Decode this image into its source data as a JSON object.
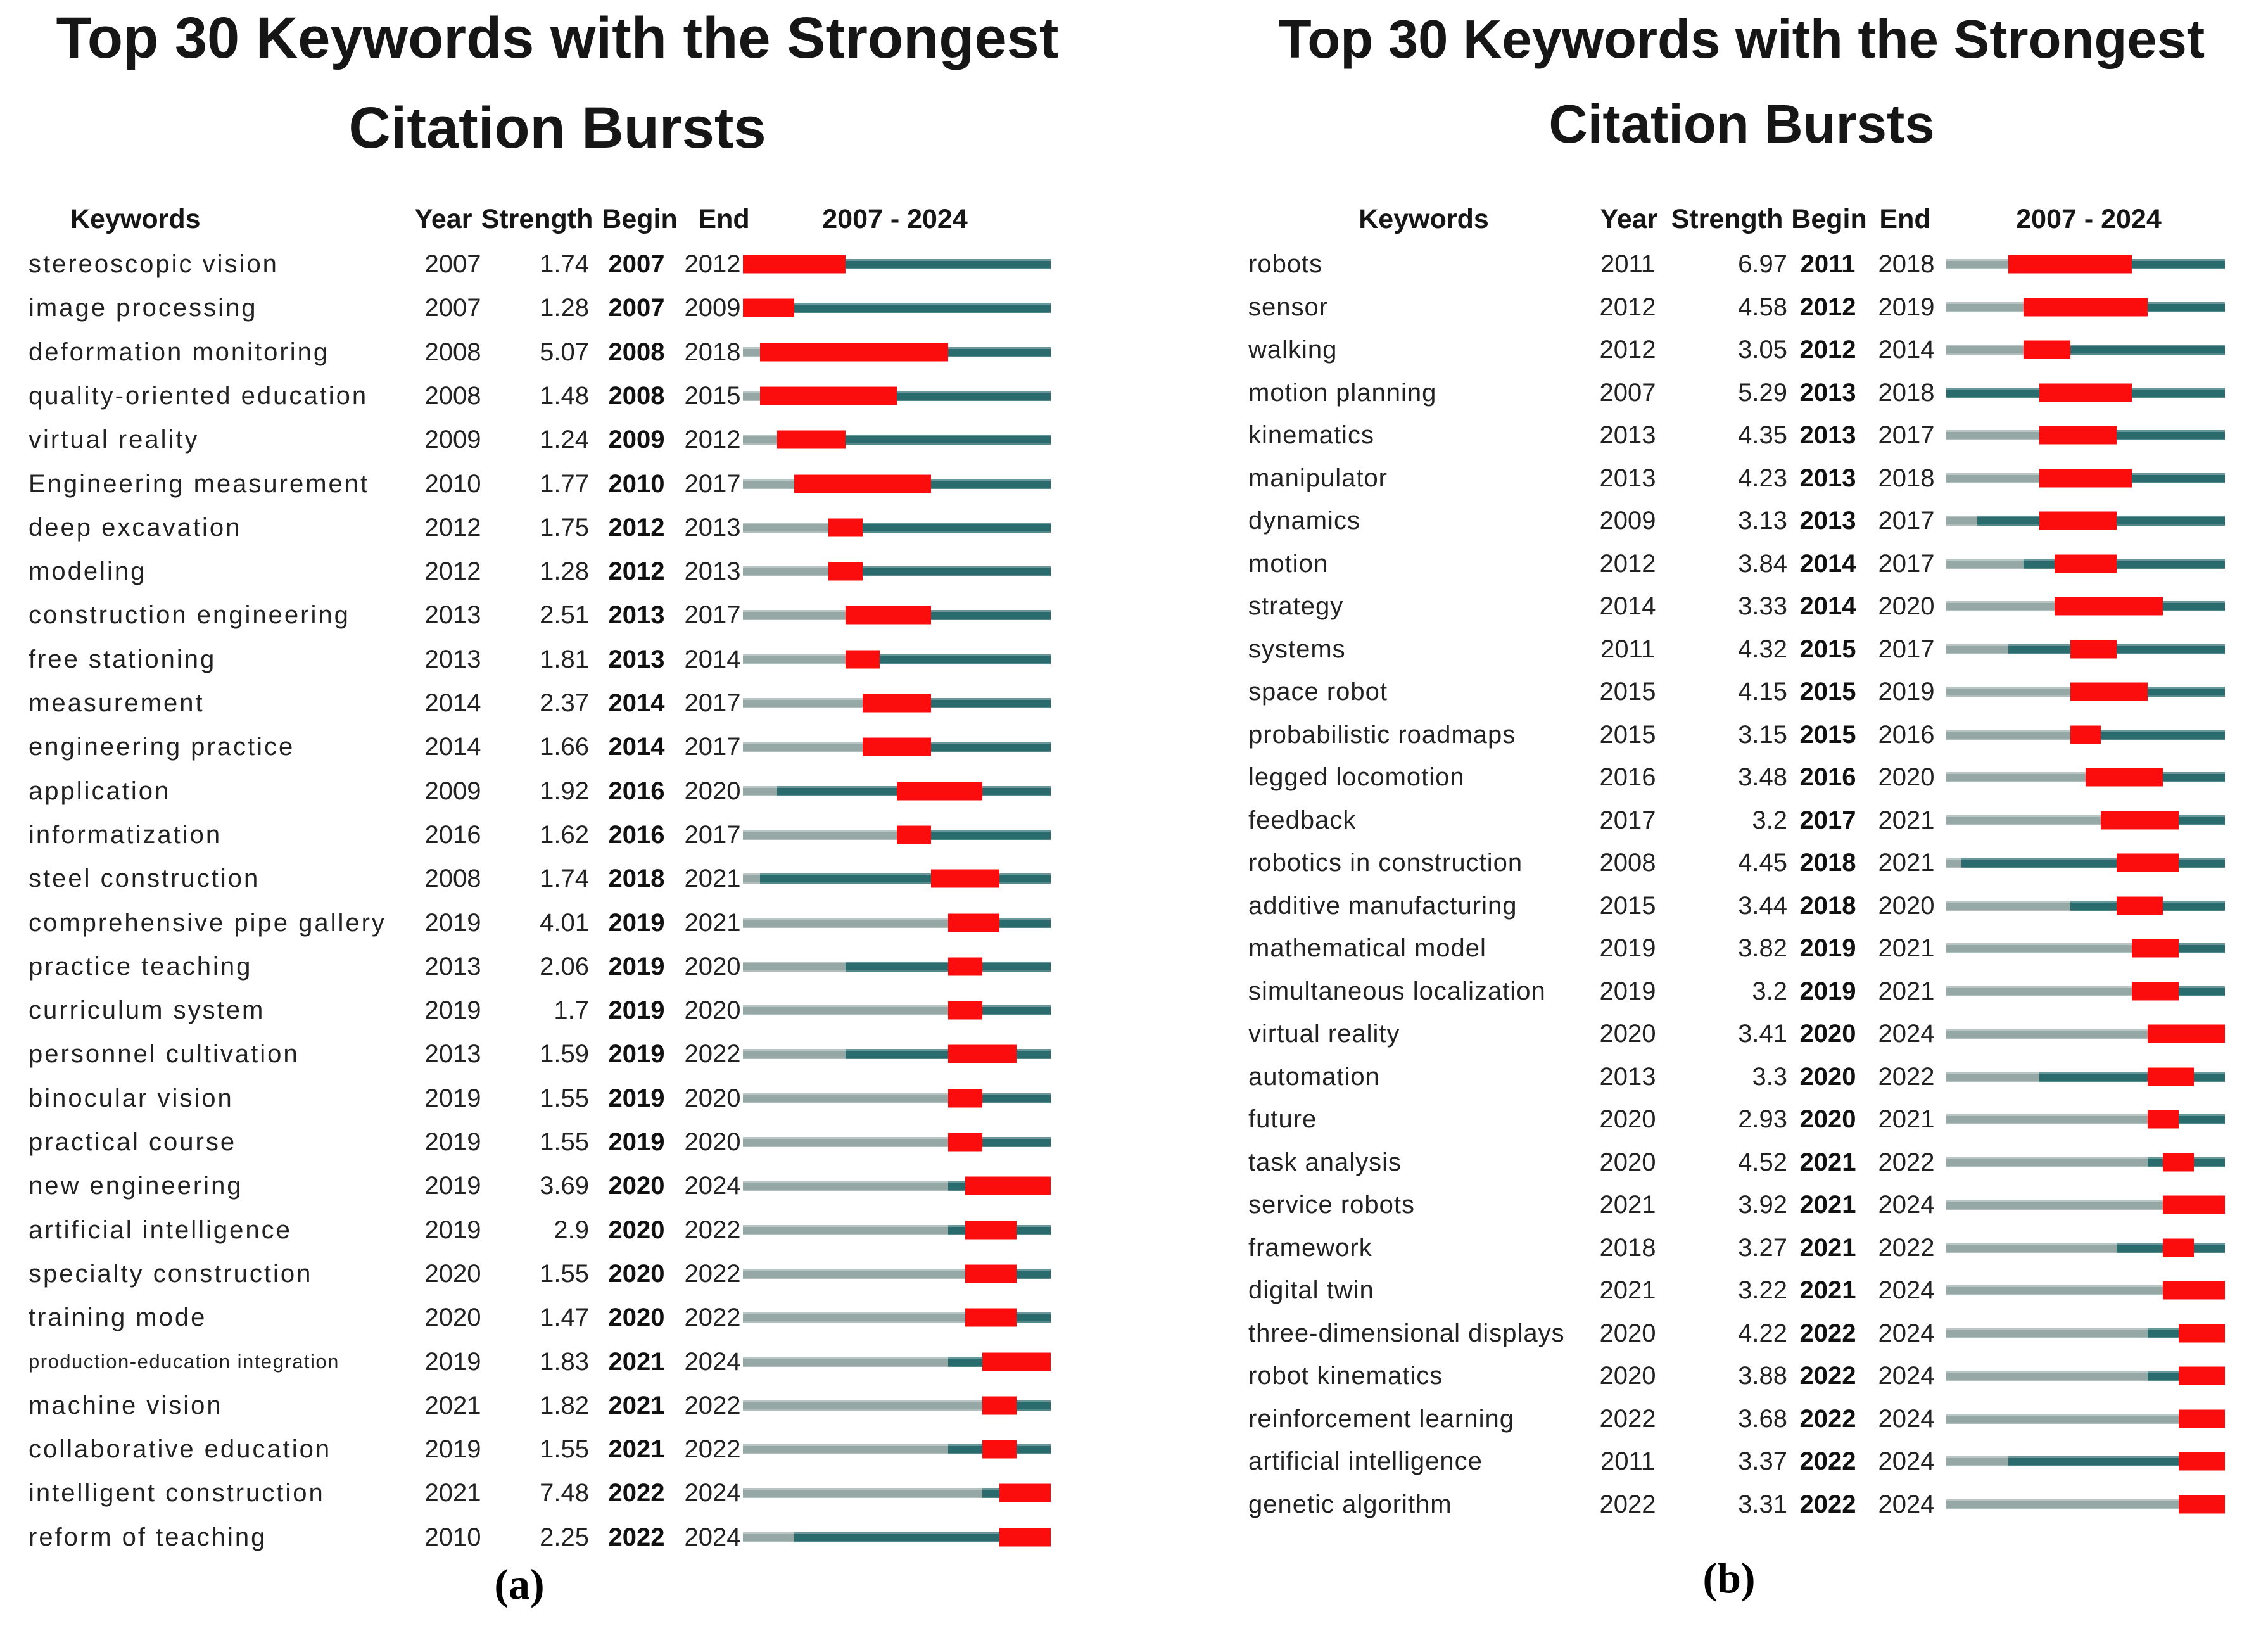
{
  "chart_data": [
    {
      "type": "table",
      "id": "a",
      "title": "Top 30 Keywords with the Strongest Citation Bursts",
      "title_lines": [
        "Top 30 Keywords with the Strongest",
        "Citation Bursts"
      ],
      "caption": "(a)",
      "columns": [
        "Keywords",
        "Year",
        "Strength",
        "Begin",
        "End"
      ],
      "period_label": "2007 - 2024",
      "timeline_start": 2007,
      "timeline_end": 2024,
      "legend": {
        "pre_appearance_color": "#95a8a6",
        "active_color": "#2a6b6e",
        "burst_color": "#fb0d0d",
        "burst_meaning": "citation burst period",
        "layout": "grid off, burst timeline bars right of table"
      },
      "rows": [
        {
          "keyword": "stereoscopic vision",
          "year": 2007,
          "strength": "1.74",
          "begin": 2007,
          "end": 2012
        },
        {
          "keyword": "image processing",
          "year": 2007,
          "strength": "1.28",
          "begin": 2007,
          "end": 2009
        },
        {
          "keyword": "deformation monitoring",
          "year": 2008,
          "strength": "5.07",
          "begin": 2008,
          "end": 2018
        },
        {
          "keyword": "quality-oriented education",
          "year": 2008,
          "strength": "1.48",
          "begin": 2008,
          "end": 2015
        },
        {
          "keyword": "virtual reality",
          "year": 2009,
          "strength": "1.24",
          "begin": 2009,
          "end": 2012
        },
        {
          "keyword": "Engineering measurement",
          "year": 2010,
          "strength": "1.77",
          "begin": 2010,
          "end": 2017
        },
        {
          "keyword": "deep excavation",
          "year": 2012,
          "strength": "1.75",
          "begin": 2012,
          "end": 2013
        },
        {
          "keyword": "modeling",
          "year": 2012,
          "strength": "1.28",
          "begin": 2012,
          "end": 2013
        },
        {
          "keyword": "construction engineering",
          "year": 2013,
          "strength": "2.51",
          "begin": 2013,
          "end": 2017
        },
        {
          "keyword": "free stationing",
          "year": 2013,
          "strength": "1.81",
          "begin": 2013,
          "end": 2014
        },
        {
          "keyword": "measurement",
          "year": 2014,
          "strength": "2.37",
          "begin": 2014,
          "end": 2017
        },
        {
          "keyword": "engineering practice",
          "year": 2014,
          "strength": "1.66",
          "begin": 2014,
          "end": 2017
        },
        {
          "keyword": "application",
          "year": 2009,
          "strength": "1.92",
          "begin": 2016,
          "end": 2020
        },
        {
          "keyword": "informatization",
          "year": 2016,
          "strength": "1.62",
          "begin": 2016,
          "end": 2017
        },
        {
          "keyword": "steel construction",
          "year": 2008,
          "strength": "1.74",
          "begin": 2018,
          "end": 2021
        },
        {
          "keyword": "comprehensive pipe gallery",
          "year": 2019,
          "strength": "4.01",
          "begin": 2019,
          "end": 2021
        },
        {
          "keyword": "practice teaching",
          "year": 2013,
          "strength": "2.06",
          "begin": 2019,
          "end": 2020
        },
        {
          "keyword": "curriculum system",
          "year": 2019,
          "strength": "1.7",
          "begin": 2019,
          "end": 2020
        },
        {
          "keyword": "personnel cultivation",
          "year": 2013,
          "strength": "1.59",
          "begin": 2019,
          "end": 2022
        },
        {
          "keyword": "binocular vision",
          "year": 2019,
          "strength": "1.55",
          "begin": 2019,
          "end": 2020
        },
        {
          "keyword": "practical course",
          "year": 2019,
          "strength": "1.55",
          "begin": 2019,
          "end": 2020
        },
        {
          "keyword": "new engineering",
          "year": 2019,
          "strength": "3.69",
          "begin": 2020,
          "end": 2024
        },
        {
          "keyword": "artificial intelligence",
          "year": 2019,
          "strength": "2.9",
          "begin": 2020,
          "end": 2022
        },
        {
          "keyword": "specialty construction",
          "year": 2020,
          "strength": "1.55",
          "begin": 2020,
          "end": 2022
        },
        {
          "keyword": "training mode",
          "year": 2020,
          "strength": "1.47",
          "begin": 2020,
          "end": 2022
        },
        {
          "keyword": "production-education integration",
          "year": 2019,
          "strength": "1.83",
          "begin": 2021,
          "end": 2024
        },
        {
          "keyword": "machine vision",
          "year": 2021,
          "strength": "1.82",
          "begin": 2021,
          "end": 2022
        },
        {
          "keyword": "collaborative education",
          "year": 2019,
          "strength": "1.55",
          "begin": 2021,
          "end": 2022
        },
        {
          "keyword": "intelligent construction",
          "year": 2021,
          "strength": "7.48",
          "begin": 2022,
          "end": 2024
        },
        {
          "keyword": "reform of teaching",
          "year": 2010,
          "strength": "2.25",
          "begin": 2022,
          "end": 2024
        }
      ]
    },
    {
      "type": "table",
      "id": "b",
      "title": "Top 30 Keywords with the Strongest Citation Bursts",
      "title_lines": [
        "Top 30 Keywords with the Strongest",
        "Citation Bursts"
      ],
      "caption": "(b)",
      "columns": [
        "Keywords",
        "Year",
        "Strength",
        "Begin",
        "End"
      ],
      "period_label": "2007 - 2024",
      "timeline_start": 2007,
      "timeline_end": 2024,
      "legend": {
        "pre_appearance_color": "#95a8a6",
        "active_color": "#2a6b6e",
        "burst_color": "#fb0d0d",
        "burst_meaning": "citation burst period",
        "layout": "grid off, burst timeline bars right of table"
      },
      "rows": [
        {
          "keyword": "robots",
          "year": 2011,
          "strength": "6.97",
          "begin": 2011,
          "end": 2018
        },
        {
          "keyword": "sensor",
          "year": 2012,
          "strength": "4.58",
          "begin": 2012,
          "end": 2019
        },
        {
          "keyword": "walking",
          "year": 2012,
          "strength": "3.05",
          "begin": 2012,
          "end": 2014
        },
        {
          "keyword": "motion planning",
          "year": 2007,
          "strength": "5.29",
          "begin": 2013,
          "end": 2018
        },
        {
          "keyword": "kinematics",
          "year": 2013,
          "strength": "4.35",
          "begin": 2013,
          "end": 2017
        },
        {
          "keyword": "manipulator",
          "year": 2013,
          "strength": "4.23",
          "begin": 2013,
          "end": 2018
        },
        {
          "keyword": "dynamics",
          "year": 2009,
          "strength": "3.13",
          "begin": 2013,
          "end": 2017
        },
        {
          "keyword": "motion",
          "year": 2012,
          "strength": "3.84",
          "begin": 2014,
          "end": 2017
        },
        {
          "keyword": "strategy",
          "year": 2014,
          "strength": "3.33",
          "begin": 2014,
          "end": 2020
        },
        {
          "keyword": "systems",
          "year": 2011,
          "strength": "4.32",
          "begin": 2015,
          "end": 2017
        },
        {
          "keyword": "space robot",
          "year": 2015,
          "strength": "4.15",
          "begin": 2015,
          "end": 2019
        },
        {
          "keyword": "probabilistic roadmaps",
          "year": 2015,
          "strength": "3.15",
          "begin": 2015,
          "end": 2016
        },
        {
          "keyword": "legged locomotion",
          "year": 2016,
          "strength": "3.48",
          "begin": 2016,
          "end": 2020
        },
        {
          "keyword": "feedback",
          "year": 2017,
          "strength": "3.2",
          "begin": 2017,
          "end": 2021
        },
        {
          "keyword": "robotics in construction",
          "year": 2008,
          "strength": "4.45",
          "begin": 2018,
          "end": 2021
        },
        {
          "keyword": "additive manufacturing",
          "year": 2015,
          "strength": "3.44",
          "begin": 2018,
          "end": 2020
        },
        {
          "keyword": "mathematical model",
          "year": 2019,
          "strength": "3.82",
          "begin": 2019,
          "end": 2021
        },
        {
          "keyword": "simultaneous localization",
          "year": 2019,
          "strength": "3.2",
          "begin": 2019,
          "end": 2021
        },
        {
          "keyword": "virtual reality",
          "year": 2020,
          "strength": "3.41",
          "begin": 2020,
          "end": 2024
        },
        {
          "keyword": "automation",
          "year": 2013,
          "strength": "3.3",
          "begin": 2020,
          "end": 2022
        },
        {
          "keyword": "future",
          "year": 2020,
          "strength": "2.93",
          "begin": 2020,
          "end": 2021
        },
        {
          "keyword": "task analysis",
          "year": 2020,
          "strength": "4.52",
          "begin": 2021,
          "end": 2022
        },
        {
          "keyword": "service robots",
          "year": 2021,
          "strength": "3.92",
          "begin": 2021,
          "end": 2024
        },
        {
          "keyword": "framework",
          "year": 2018,
          "strength": "3.27",
          "begin": 2021,
          "end": 2022
        },
        {
          "keyword": "digital twin",
          "year": 2021,
          "strength": "3.22",
          "begin": 2021,
          "end": 2024
        },
        {
          "keyword": "three-dimensional displays",
          "year": 2020,
          "strength": "4.22",
          "begin": 2022,
          "end": 2024
        },
        {
          "keyword": "robot kinematics",
          "year": 2020,
          "strength": "3.88",
          "begin": 2022,
          "end": 2024
        },
        {
          "keyword": "reinforcement learning",
          "year": 2022,
          "strength": "3.68",
          "begin": 2022,
          "end": 2024
        },
        {
          "keyword": "artificial intelligence",
          "year": 2011,
          "strength": "3.37",
          "begin": 2022,
          "end": 2024
        },
        {
          "keyword": "genetic algorithm",
          "year": 2022,
          "strength": "3.31",
          "begin": 2022,
          "end": 2024
        }
      ]
    }
  ]
}
